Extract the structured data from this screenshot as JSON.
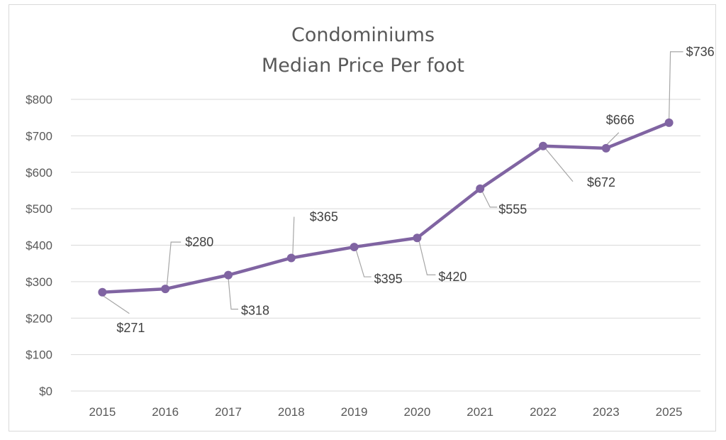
{
  "chart_data": {
    "type": "line",
    "title_lines": [
      "Condominiums",
      "Median Price Per foot"
    ],
    "categories": [
      "2015",
      "2016",
      "2017",
      "2018",
      "2019",
      "2020",
      "2021",
      "2022",
      "2023",
      "2025"
    ],
    "series": [
      {
        "values": [
          271,
          280,
          318,
          365,
          395,
          420,
          555,
          672,
          666,
          736
        ],
        "labels": [
          "$271",
          "$280",
          "$318",
          "$365",
          "$395",
          "$420",
          "$555",
          "$672",
          "$666",
          "$736"
        ],
        "color": "#8064a2"
      }
    ],
    "y_ticks": [
      "$0",
      "$100",
      "$200",
      "$300",
      "$400",
      "$500",
      "$600",
      "$700",
      "$800"
    ],
    "ylim": [
      0,
      800
    ],
    "grid": true,
    "legend": "none"
  }
}
